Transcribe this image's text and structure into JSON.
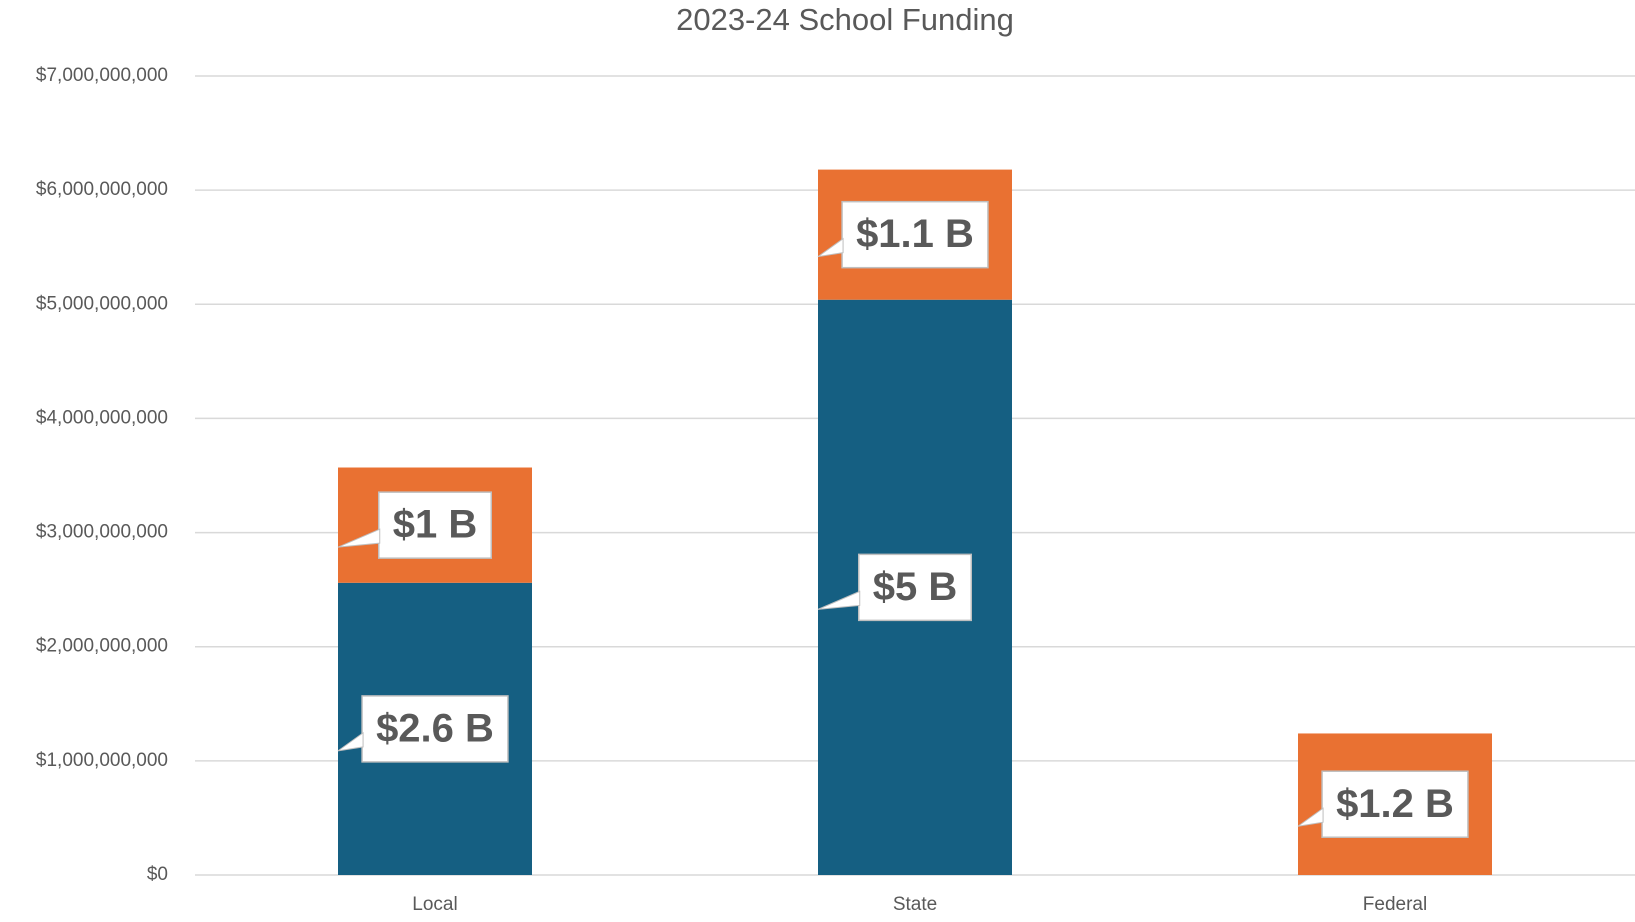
{
  "chart_data": {
    "type": "stacked_bar",
    "title": "2023-24 School Funding",
    "categories": [
      "Local",
      "State",
      "Federal"
    ],
    "series": [
      {
        "color": "#155f82",
        "values": [
          2560000000,
          5040000000,
          null
        ],
        "value_labels": [
          "$2.6 B",
          "$5 B",
          null
        ]
      },
      {
        "color": "#e97132",
        "values": [
          1010000000,
          1140000000,
          1240000000
        ],
        "value_labels": [
          "$1 B",
          "$1.1 B",
          "$1.2 B"
        ]
      }
    ],
    "ylim": [
      0,
      7000000000
    ],
    "yticks": [
      {
        "value": 0,
        "label": "$0"
      },
      {
        "value": 1000000000,
        "label": "$1,000,000,000"
      },
      {
        "value": 2000000000,
        "label": "$2,000,000,000"
      },
      {
        "value": 3000000000,
        "label": "$3,000,000,000"
      },
      {
        "value": 4000000000,
        "label": "$4,000,000,000"
      },
      {
        "value": 5000000000,
        "label": "$5,000,000,000"
      },
      {
        "value": 6000000000,
        "label": "$6,000,000,000"
      },
      {
        "value": 7000000000,
        "label": "$7,000,000,000"
      }
    ],
    "grid": true
  }
}
